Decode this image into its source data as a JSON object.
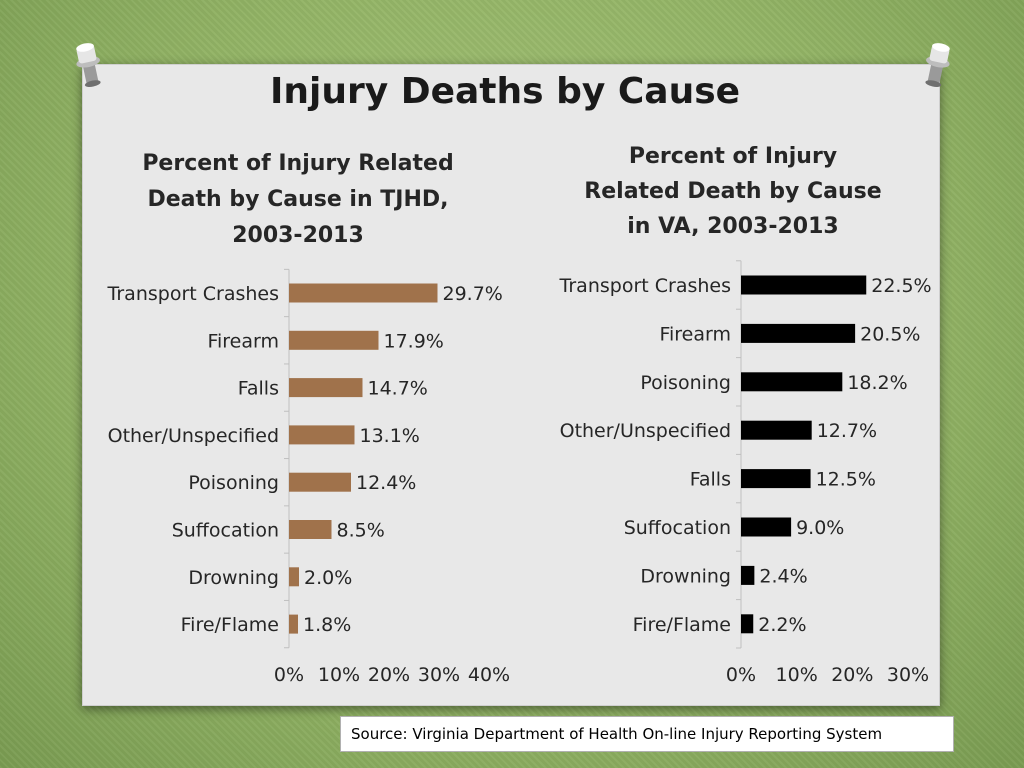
{
  "slide": {
    "title": "Injury Deaths by Cause",
    "source": "Source: Virginia Department of Health On-line Injury Reporting System"
  },
  "colors": {
    "tjhd_bar": "#a0724b",
    "va_bar": "#000000"
  },
  "chart_data": [
    {
      "type": "bar",
      "orientation": "horizontal",
      "title_lines": [
        "Percent of Injury Related",
        "Death by Cause in TJHD,",
        "2003-2013"
      ],
      "categories": [
        "Transport Crashes",
        "Firearm",
        "Falls",
        "Other/Unspecified",
        "Poisoning",
        "Suffocation",
        "Drowning",
        "Fire/Flame"
      ],
      "values": [
        29.7,
        17.9,
        14.7,
        13.1,
        12.4,
        8.5,
        2.0,
        1.8
      ],
      "value_labels": [
        "29.7%",
        "17.9%",
        "14.7%",
        "13.1%",
        "12.4%",
        "8.5%",
        "2.0%",
        "1.8%"
      ],
      "xlim": [
        0,
        40
      ],
      "xticks": [
        "0%",
        "10%",
        "20%",
        "30%",
        "40%"
      ],
      "grid": false,
      "legend": "none"
    },
    {
      "type": "bar",
      "orientation": "horizontal",
      "title_lines": [
        "Percent of Injury",
        "Related Death by Cause",
        "in VA, 2003-2013"
      ],
      "categories": [
        "Transport Crashes",
        "Firearm",
        "Poisoning",
        "Other/Unspecified",
        "Falls",
        "Suffocation",
        "Drowning",
        "Fire/Flame"
      ],
      "values": [
        22.5,
        20.5,
        18.2,
        12.7,
        12.5,
        9.0,
        2.4,
        2.2
      ],
      "value_labels": [
        "22.5%",
        "20.5%",
        "18.2%",
        "12.7%",
        "12.5%",
        "9.0%",
        "2.4%",
        "2.2%"
      ],
      "xlim": [
        0,
        30
      ],
      "xticks": [
        "0%",
        "10%",
        "20%",
        "30%"
      ],
      "grid": false,
      "legend": "none"
    }
  ]
}
